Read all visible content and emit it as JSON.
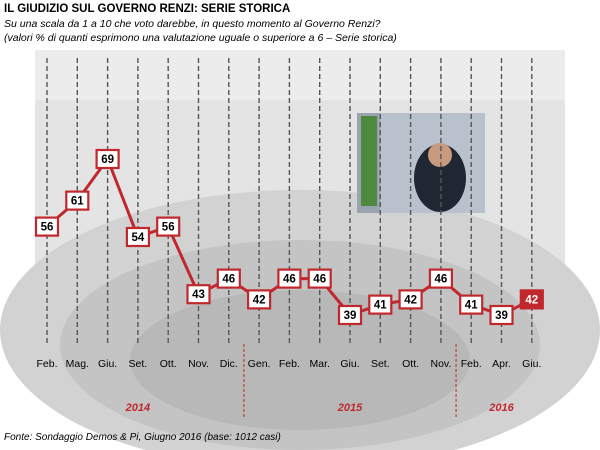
{
  "header": {
    "title": "IL GIUDIZIO  SUL GOVERNO RENZI: SERIE STORICA",
    "subtitle_1": "Su una scala da 1 a 10 che voto darebbe, in questo momento al Governo Renzi?",
    "subtitle_2": "(valori % di quanti esprimono una valutazione uguale o superiore a 6 – Serie storica)"
  },
  "footer": {
    "source": "Fonte: Sondaggio Demos & Pi, Giugno 2016 (base: 1012 casi)"
  },
  "colors": {
    "line": "#c0282d",
    "box_fill": "#ffffff",
    "last_box_fill": "#c0282d",
    "year_text": "#c0282d",
    "background_photo": "#d8d8d8"
  },
  "chart_data": {
    "type": "line",
    "categories": [
      "Feb.",
      "Mag.",
      "Giu.",
      "Set.",
      "Ott.",
      "Nov.",
      "Dic.",
      "Gen.",
      "Feb.",
      "Mar.",
      "Giu.",
      "Set.",
      "Ott.",
      "Nov.",
      "Feb.",
      "Apr.",
      "Giu."
    ],
    "values": [
      56,
      61,
      69,
      54,
      56,
      43,
      46,
      42,
      46,
      46,
      39,
      41,
      42,
      46,
      41,
      39,
      42
    ],
    "years": [
      {
        "label": "2014",
        "from_index": 0,
        "to_index": 6
      },
      {
        "label": "2015",
        "from_index": 7,
        "to_index": 13
      },
      {
        "label": "2016",
        "from_index": 14,
        "to_index": 16
      }
    ],
    "data_labels": true,
    "grid": false,
    "legend": "none"
  }
}
